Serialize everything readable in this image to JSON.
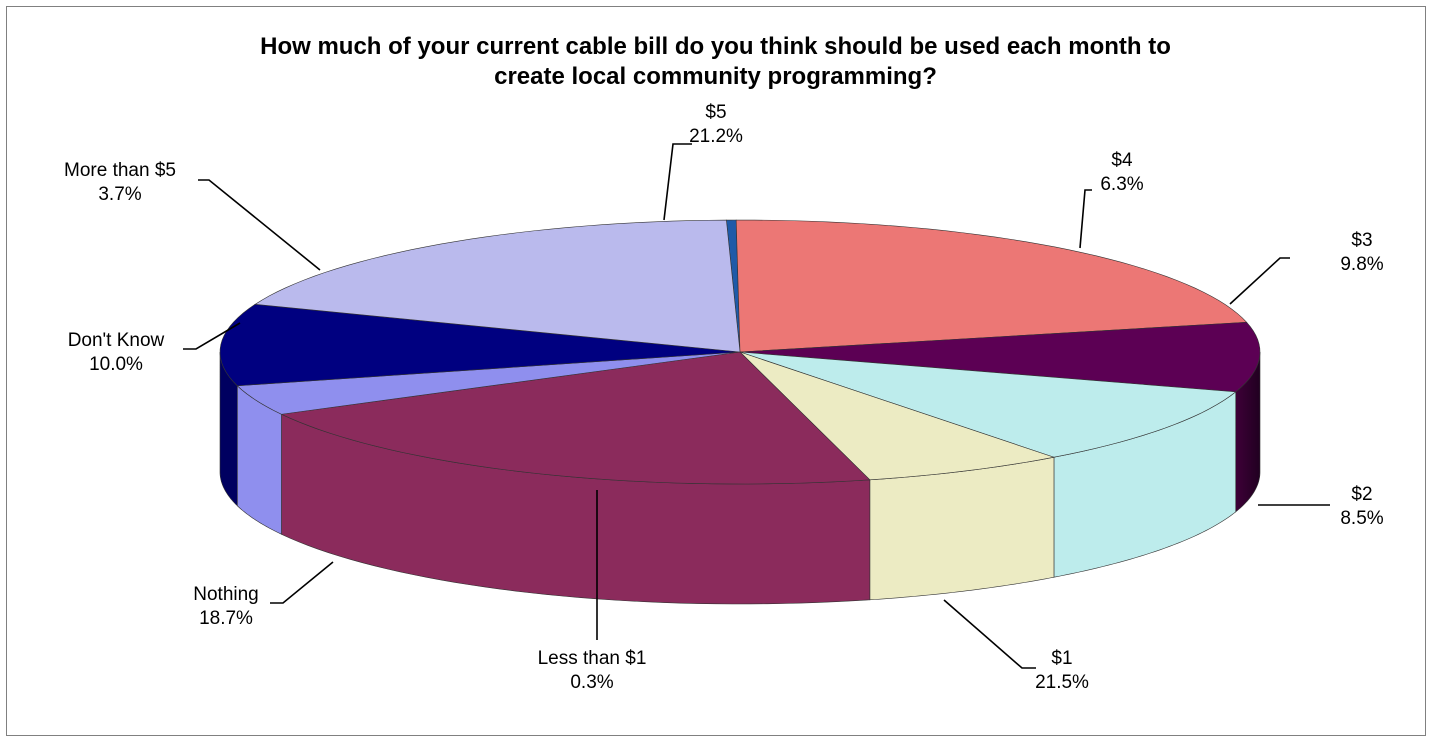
{
  "chart_data": {
    "type": "pie",
    "title_line1": "How much of your current cable bill do you think should be used each month to",
    "title_line2": "create local community programming?",
    "slices": [
      {
        "label": "Less than $1",
        "value": 0.3,
        "value_text": "0.3%",
        "color": "#1f5aa8"
      },
      {
        "label": "$1",
        "value": 21.5,
        "value_text": "21.5%",
        "color": "#ec7775"
      },
      {
        "label": "$2",
        "value": 8.5,
        "value_text": "8.5%",
        "color": "#5c0054"
      },
      {
        "label": "$3",
        "value": 9.8,
        "value_text": "9.8%",
        "color": "#bdecec"
      },
      {
        "label": "$4",
        "value": 6.3,
        "value_text": "6.3%",
        "color": "#ecebc3"
      },
      {
        "label": "$5",
        "value": 21.2,
        "value_text": "21.2%",
        "color": "#8b2b5c"
      },
      {
        "label": "More than $5",
        "value": 3.7,
        "value_text": "3.7%",
        "color": "#8f8fee"
      },
      {
        "label": "Don't Know",
        "value": 10.0,
        "value_text": "10.0%",
        "color": "#000080"
      },
      {
        "label": "Nothing",
        "value": 18.7,
        "value_text": "18.7%",
        "color": "#babaed"
      }
    ]
  }
}
